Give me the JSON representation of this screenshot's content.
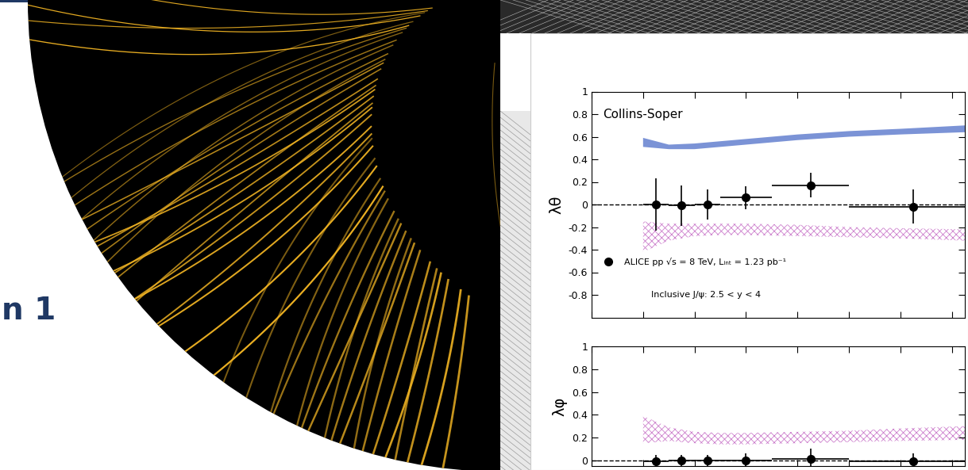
{
  "slide_text": "n 1",
  "chart_data": [
    {
      "type": "errorbar",
      "frame_label": "Collins-Soper",
      "annotation": "Inclusive J/ψ: 2.5 < y < 4",
      "y_label": "λθ",
      "xlim": [
        0,
        14.5
      ],
      "xticks": [
        0,
        2,
        4,
        6,
        8,
        10,
        12,
        14
      ],
      "ylim": [
        -1,
        1
      ],
      "yticks": [
        -0.8,
        -0.6,
        -0.4,
        -0.2,
        0,
        0.2,
        0.4,
        0.6,
        0.8,
        1
      ],
      "tick_labels": "y",
      "legend": "lower left",
      "series": [
        {
          "type": "band",
          "color": "#7b93d6",
          "x": [
            2,
            3,
            4,
            5,
            6,
            8,
            10,
            12,
            14.5
          ],
          "low": [
            0.51,
            0.49,
            0.49,
            0.51,
            0.53,
            0.57,
            0.6,
            0.62,
            0.64
          ],
          "high": [
            0.59,
            0.53,
            0.54,
            0.56,
            0.58,
            0.62,
            0.65,
            0.67,
            0.7
          ]
        },
        {
          "type": "hatched_band",
          "color": "#cc7fcc",
          "x": [
            2,
            3,
            4,
            5,
            6,
            8,
            10,
            12,
            14.5
          ],
          "low": [
            -0.42,
            -0.32,
            -0.28,
            -0.27,
            -0.27,
            -0.28,
            -0.29,
            -0.3,
            -0.32
          ],
          "high": [
            -0.15,
            -0.17,
            -0.17,
            -0.17,
            -0.17,
            -0.18,
            -0.2,
            -0.21,
            -0.22
          ]
        },
        {
          "type": "line",
          "line_style": "dashed",
          "color": "#000000",
          "x": [
            0,
            14.5
          ],
          "values": [
            0,
            0
          ]
        },
        {
          "type": "errorbar",
          "name": "ALICE pp √s = 8 TeV, Lᵢₙₜ = 1.23 pb⁻¹",
          "color": "#000000",
          "marker": "circle",
          "x": [
            2.5,
            3.5,
            4.5,
            6,
            8.5,
            12.5
          ],
          "x_errors": [
            0.5,
            0.5,
            0.5,
            1,
            1.5,
            2.5
          ],
          "values": [
            0.0,
            -0.01,
            0.0,
            0.06,
            0.17,
            -0.02
          ],
          "errors": [
            0.23,
            0.18,
            0.13,
            0.1,
            0.11,
            0.15
          ]
        }
      ]
    },
    {
      "type": "errorbar",
      "y_label": "λφ",
      "xlim": [
        0,
        14.5
      ],
      "xticks": [
        0,
        2,
        4,
        6,
        8,
        10,
        12,
        14
      ],
      "ylim": [
        -0.05,
        1
      ],
      "yticks": [
        0,
        0.2,
        0.4,
        0.6,
        0.8,
        1
      ],
      "tick_labels": "y",
      "series": [
        {
          "type": "hatched_band",
          "color": "#cc7fcc",
          "x": [
            2,
            3,
            4,
            5,
            6,
            8,
            10,
            12,
            14.5
          ],
          "low": [
            0.15,
            0.17,
            0.15,
            0.14,
            0.14,
            0.15,
            0.16,
            0.17,
            0.18
          ],
          "high": [
            0.39,
            0.29,
            0.25,
            0.24,
            0.24,
            0.25,
            0.26,
            0.28,
            0.3
          ]
        },
        {
          "type": "line",
          "line_style": "dashed",
          "color": "#000000",
          "x": [
            0,
            14.5
          ],
          "values": [
            0,
            0
          ]
        },
        {
          "type": "errorbar",
          "color": "#000000",
          "marker": "circle",
          "x": [
            2.5,
            3.5,
            4.5,
            6,
            8.5,
            12.5
          ],
          "x_errors": [
            0.5,
            0.5,
            0.5,
            1,
            1.5,
            2.5
          ],
          "values": [
            -0.01,
            0.0,
            0.0,
            0.0,
            0.01,
            -0.01
          ],
          "errors": [
            0.06,
            0.05,
            0.05,
            0.06,
            0.09,
            0.07
          ]
        }
      ]
    }
  ]
}
